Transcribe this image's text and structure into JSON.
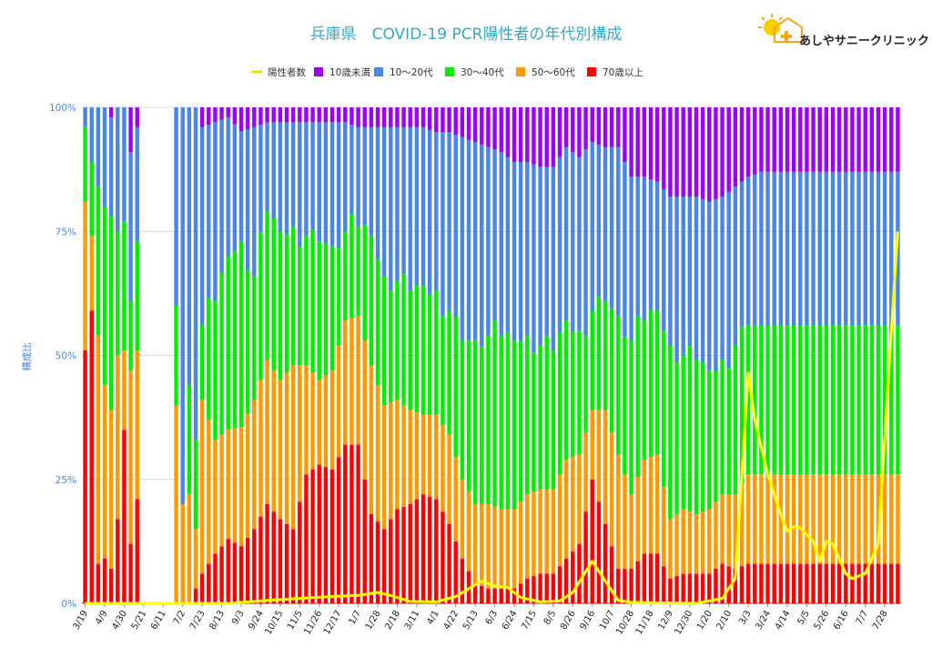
{
  "chart_data": {
    "type": "bar",
    "title": "兵庫県　COVID-19 PCR陽性者の年代別構成",
    "ylabel": "構成比",
    "ylim": [
      0,
      100
    ],
    "yticks": [
      "0%",
      "25%",
      "50%",
      "75%",
      "100%"
    ],
    "legend_position": "top",
    "stacked": true,
    "x_tick_labels": [
      "3/19",
      "4/9",
      "4/30",
      "5/21",
      "6/11",
      "7/2",
      "7/23",
      "8/13",
      "9/3",
      "9/24",
      "10/15",
      "11/5",
      "11/26",
      "12/17",
      "1/7",
      "1/28",
      "2/18",
      "3/11",
      "4/1",
      "4/22",
      "5/13",
      "6/3",
      "6/24",
      "7/15",
      "8/5",
      "8/26",
      "9/16",
      "10/7",
      "10/28",
      "11/18",
      "12/9",
      "12/30",
      "1/20",
      "2/10",
      "3/3",
      "3/24",
      "4/14",
      "5/5",
      "5/26",
      "6/16",
      "7/7",
      "7/28"
    ],
    "series": [
      {
        "name": "10歳未満",
        "color": "#9b00ff"
      },
      {
        "name": "10〜20代",
        "color": "#4a86e8"
      },
      {
        "name": "30〜40代",
        "color": "#00ee00"
      },
      {
        "name": "50〜60代",
        "color": "#ff9900"
      },
      {
        "name": "70歳以上",
        "color": "#ff0000"
      }
    ],
    "line_series": {
      "name": "陽性者数",
      "color": "#ffff00"
    },
    "weekly": {
      "gap_weeks": [
        9,
        10,
        11,
        12,
        13
      ],
      "keys": [
        {
          "w": 0,
          "b": [
            0,
            4,
            15,
            30,
            51
          ]
        },
        {
          "w": 1,
          "b": [
            0,
            11,
            15,
            15,
            59
          ]
        },
        {
          "w": 2,
          "b": [
            0,
            16,
            30,
            46,
            8
          ]
        },
        {
          "w": 3,
          "b": [
            0,
            20,
            36,
            35,
            9
          ]
        },
        {
          "w": 4,
          "b": [
            2,
            20,
            39,
            32,
            7
          ]
        },
        {
          "w": 5,
          "b": [
            0,
            25,
            25,
            33,
            17
          ]
        },
        {
          "w": 6,
          "b": [
            0,
            23,
            26,
            16,
            35
          ]
        },
        {
          "w": 7,
          "b": [
            9,
            30,
            14,
            35,
            12
          ]
        },
        {
          "w": 8,
          "b": [
            4,
            23,
            22,
            30,
            21
          ]
        },
        {
          "w": 14,
          "b": [
            0,
            40,
            20,
            40,
            0
          ]
        },
        {
          "w": 15,
          "b": [
            0,
            80,
            0,
            20,
            0
          ]
        },
        {
          "w": 16,
          "b": [
            0,
            38,
            15,
            15,
            0
          ]
        },
        {
          "w": 17,
          "b": [
            0,
            67,
            18,
            12,
            3
          ]
        },
        {
          "w": 18,
          "b": [
            4,
            40,
            15,
            35,
            6
          ]
        },
        {
          "w": 20,
          "b": [
            3,
            36,
            28,
            23,
            10
          ]
        },
        {
          "w": 22,
          "b": [
            2,
            28,
            35,
            22,
            13
          ]
        },
        {
          "w": 24,
          "b": [
            5,
            23,
            39,
            25,
            12
          ]
        },
        {
          "w": 26,
          "b": [
            4,
            30,
            25,
            26,
            15
          ]
        },
        {
          "w": 28,
          "b": [
            3,
            18,
            30,
            29,
            20
          ]
        },
        {
          "w": 30,
          "b": [
            3,
            22,
            30,
            28,
            17
          ]
        },
        {
          "w": 32,
          "b": [
            3,
            21,
            28,
            33,
            15
          ]
        },
        {
          "w": 34,
          "b": [
            3,
            23,
            26,
            22,
            26
          ]
        },
        {
          "w": 36,
          "b": [
            3,
            24,
            28,
            17,
            28
          ]
        },
        {
          "w": 38,
          "b": [
            3,
            25,
            25,
            20,
            27
          ]
        },
        {
          "w": 40,
          "b": [
            3,
            22,
            18,
            25,
            32
          ]
        },
        {
          "w": 42,
          "b": [
            4,
            20,
            18,
            26,
            32
          ]
        },
        {
          "w": 44,
          "b": [
            4,
            22,
            26,
            30,
            18
          ]
        },
        {
          "w": 46,
          "b": [
            4,
            30,
            26,
            25,
            15
          ]
        },
        {
          "w": 48,
          "b": [
            4,
            31,
            24,
            22,
            19
          ]
        },
        {
          "w": 50,
          "b": [
            4,
            33,
            24,
            19,
            20
          ]
        },
        {
          "w": 52,
          "b": [
            4,
            32,
            26,
            16,
            22
          ]
        },
        {
          "w": 54,
          "b": [
            5,
            32,
            25,
            17,
            21
          ]
        },
        {
          "w": 56,
          "b": [
            5,
            36,
            25,
            18,
            16
          ]
        },
        {
          "w": 58,
          "b": [
            6,
            41,
            28,
            16,
            9
          ]
        },
        {
          "w": 60,
          "b": [
            7,
            40,
            33,
            16,
            4
          ]
        },
        {
          "w": 62,
          "b": [
            8,
            38,
            34,
            17,
            3
          ]
        },
        {
          "w": 64,
          "b": [
            9,
            37,
            35,
            16,
            3
          ]
        },
        {
          "w": 66,
          "b": [
            11,
            36,
            34,
            16,
            3
          ]
        },
        {
          "w": 68,
          "b": [
            11,
            35,
            32,
            17,
            5
          ]
        },
        {
          "w": 70,
          "b": [
            12,
            36,
            29,
            17,
            6
          ]
        },
        {
          "w": 72,
          "b": [
            12,
            37,
            28,
            17,
            6
          ]
        },
        {
          "w": 74,
          "b": [
            8,
            35,
            28,
            20,
            9
          ]
        },
        {
          "w": 76,
          "b": [
            10,
            35,
            25,
            18,
            12
          ]
        },
        {
          "w": 78,
          "b": [
            7,
            34,
            20,
            14,
            25
          ]
        },
        {
          "w": 80,
          "b": [
            8,
            31,
            22,
            23,
            16
          ]
        },
        {
          "w": 82,
          "b": [
            8,
            34,
            28,
            23,
            7
          ]
        },
        {
          "w": 84,
          "b": [
            14,
            33,
            31,
            15,
            7
          ]
        },
        {
          "w": 86,
          "b": [
            14,
            29,
            28,
            19,
            10
          ]
        },
        {
          "w": 88,
          "b": [
            15,
            26,
            29,
            20,
            10
          ]
        },
        {
          "w": 90,
          "b": [
            18,
            30,
            35,
            12,
            5
          ]
        },
        {
          "w": 92,
          "b": [
            18,
            32,
            31,
            13,
            6
          ]
        },
        {
          "w": 94,
          "b": [
            18,
            33,
            31,
            12,
            6
          ]
        },
        {
          "w": 96,
          "b": [
            19,
            34,
            28,
            13,
            6
          ]
        },
        {
          "w": 98,
          "b": [
            18,
            33,
            27,
            14,
            8
          ]
        },
        {
          "w": 100,
          "b": [
            16,
            32,
            30,
            15,
            7
          ]
        },
        {
          "w": 102,
          "b": [
            14,
            30,
            30,
            18,
            8
          ]
        },
        {
          "w": 104,
          "b": [
            13,
            31,
            30,
            18,
            8
          ]
        }
      ],
      "positives_pct": [
        {
          "w": 0,
          "v": 0
        },
        {
          "w": 22,
          "v": 0
        },
        {
          "w": 28,
          "v": 0.6
        },
        {
          "w": 33,
          "v": 1.0
        },
        {
          "w": 38,
          "v": 1.4
        },
        {
          "w": 42,
          "v": 1.6
        },
        {
          "w": 45,
          "v": 2.2
        },
        {
          "w": 47,
          "v": 1.6
        },
        {
          "w": 50,
          "v": 0.4
        },
        {
          "w": 54,
          "v": 0.3
        },
        {
          "w": 57,
          "v": 1.4
        },
        {
          "w": 61,
          "v": 4.5
        },
        {
          "w": 63,
          "v": 3.5
        },
        {
          "w": 65,
          "v": 3.2
        },
        {
          "w": 67,
          "v": 1.2
        },
        {
          "w": 70,
          "v": 0.3
        },
        {
          "w": 73,
          "v": 0.5
        },
        {
          "w": 75,
          "v": 2.2
        },
        {
          "w": 78,
          "v": 8.5
        },
        {
          "w": 80,
          "v": 4.5
        },
        {
          "w": 82,
          "v": 0.6
        },
        {
          "w": 84,
          "v": 0.2
        },
        {
          "w": 94,
          "v": 0
        },
        {
          "w": 98,
          "v": 1.0
        },
        {
          "w": 100,
          "v": 5.0
        },
        {
          "w": 102,
          "v": 46.5
        },
        {
          "w": 103,
          "v": 37.0
        },
        {
          "w": 105,
          "v": 26.0
        },
        {
          "w": 107,
          "v": 18.0
        },
        {
          "w": 108,
          "v": 14.5
        },
        {
          "w": 109,
          "v": 15.5
        },
        {
          "w": 110,
          "v": 15.2
        },
        {
          "w": 112,
          "v": 12.5
        },
        {
          "w": 113,
          "v": 8.5
        },
        {
          "w": 114,
          "v": 12.5
        },
        {
          "w": 115,
          "v": 12.0
        },
        {
          "w": 117,
          "v": 6.0
        },
        {
          "w": 118,
          "v": 5.0
        },
        {
          "w": 120,
          "v": 6.0
        },
        {
          "w": 122,
          "v": 12.0
        },
        {
          "w": 124,
          "v": 55.0
        },
        {
          "w": 125,
          "v": 75.0
        }
      ]
    }
  },
  "brand": {
    "name": "あしやサニークリニック",
    "logo_colors": [
      "#f5a623",
      "#f5d000",
      "#ffffff"
    ]
  }
}
